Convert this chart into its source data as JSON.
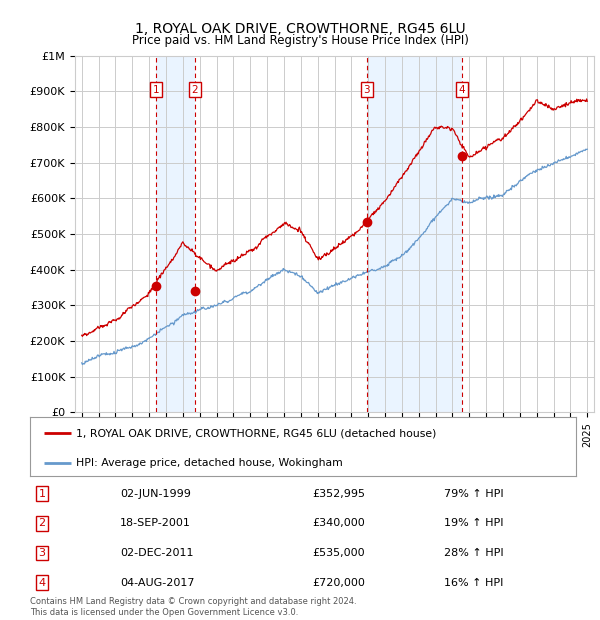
{
  "title": "1, ROYAL OAK DRIVE, CROWTHORNE, RG45 6LU",
  "subtitle": "Price paid vs. HM Land Registry's House Price Index (HPI)",
  "ylim": [
    0,
    1000000
  ],
  "yticks": [
    0,
    100000,
    200000,
    300000,
    400000,
    500000,
    600000,
    700000,
    800000,
    900000,
    1000000
  ],
  "ytick_labels": [
    "£0",
    "£100K",
    "£200K",
    "£300K",
    "£400K",
    "£500K",
    "£600K",
    "£700K",
    "£800K",
    "£900K",
    "£1M"
  ],
  "sale_color": "#cc0000",
  "hpi_color": "#6699cc",
  "background_color": "#ffffff",
  "grid_color": "#cccccc",
  "shade_color": "#ddeeff",
  "purchases": [
    {
      "id": 1,
      "date_x": 1999.42,
      "price": 352995
    },
    {
      "id": 2,
      "date_x": 2001.71,
      "price": 340000
    },
    {
      "id": 3,
      "date_x": 2011.92,
      "price": 535000
    },
    {
      "id": 4,
      "date_x": 2017.58,
      "price": 720000
    }
  ],
  "legend_label_red": "1, ROYAL OAK DRIVE, CROWTHORNE, RG45 6LU (detached house)",
  "legend_label_blue": "HPI: Average price, detached house, Wokingham",
  "footer": "Contains HM Land Registry data © Crown copyright and database right 2024.\nThis data is licensed under the Open Government Licence v3.0.",
  "table_rows": [
    {
      "id": 1,
      "date": "02-JUN-1999",
      "price": "£352,995",
      "pct": "79% ↑ HPI"
    },
    {
      "id": 2,
      "date": "18-SEP-2001",
      "price": "£340,000",
      "pct": "19% ↑ HPI"
    },
    {
      "id": 3,
      "date": "02-DEC-2011",
      "price": "£535,000",
      "pct": "28% ↑ HPI"
    },
    {
      "id": 4,
      "date": "04-AUG-2017",
      "price": "£720,000",
      "pct": "16% ↑ HPI"
    }
  ],
  "hpi_anchors_x": [
    1995,
    1997,
    1999,
    2001,
    2003,
    2005,
    2007,
    2008,
    2009,
    2010,
    2011,
    2012,
    2013,
    2014,
    2015,
    2016,
    2017,
    2018,
    2019,
    2020,
    2021,
    2022,
    2023,
    2024,
    2025
  ],
  "hpi_anchors_y": [
    130000,
    165000,
    200000,
    270000,
    295000,
    340000,
    410000,
    390000,
    340000,
    360000,
    380000,
    390000,
    410000,
    440000,
    490000,
    550000,
    600000,
    590000,
    600000,
    610000,
    650000,
    680000,
    700000,
    720000,
    740000
  ],
  "pp_anchors_x": [
    1995,
    1997,
    1999,
    2001,
    2003,
    2005,
    2007,
    2008,
    2009,
    2010,
    2011,
    2012,
    2013,
    2014,
    2015,
    2016,
    2017,
    2018,
    2019,
    2020,
    2021,
    2022,
    2023,
    2024,
    2025
  ],
  "pp_anchors_y": [
    230000,
    275000,
    350000,
    480000,
    400000,
    450000,
    530000,
    510000,
    430000,
    460000,
    490000,
    540000,
    590000,
    650000,
    720000,
    790000,
    780000,
    700000,
    730000,
    760000,
    810000,
    870000,
    850000,
    870000,
    880000
  ],
  "xmin": 1994.6,
  "xmax": 2025.4
}
